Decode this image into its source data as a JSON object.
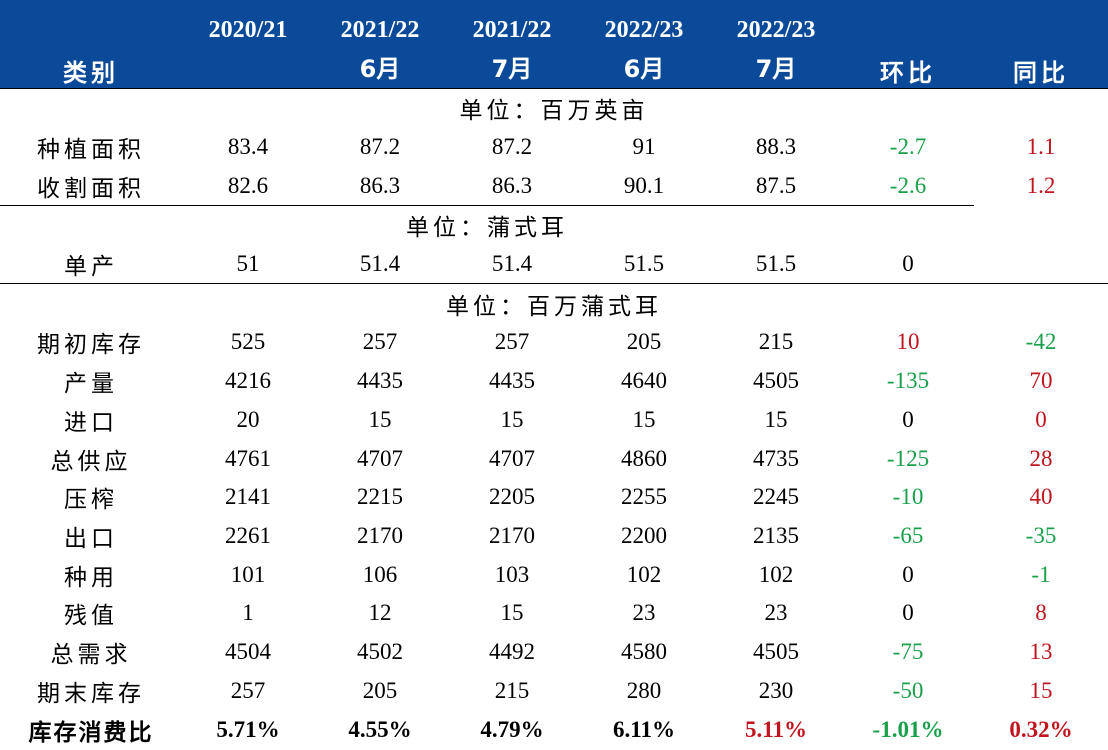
{
  "header": {
    "category_label": "类别",
    "columns": [
      {
        "line1": "2020/21",
        "line2": ""
      },
      {
        "line1": "2021/22",
        "line2": "6月"
      },
      {
        "line1": "2021/22",
        "line2": "7月"
      },
      {
        "line1": "2022/23",
        "line2": "6月"
      },
      {
        "line1": "2022/23",
        "line2": "7月"
      }
    ],
    "mom_label": "环比",
    "yoy_label": "同比"
  },
  "units": {
    "area": "单位：百万英亩",
    "yield": "单位：蒲式耳",
    "volume": "单位：百万蒲式耳"
  },
  "rows": [
    {
      "label": "种植面积",
      "values": [
        "83.4",
        "87.2",
        "87.2",
        "91",
        "88.3"
      ],
      "mom": "-2.7",
      "yoy": "1.1"
    },
    {
      "label": "收割面积",
      "values": [
        "82.6",
        "86.3",
        "86.3",
        "90.1",
        "87.5"
      ],
      "mom": "-2.6",
      "yoy": "1.2"
    },
    {
      "label": "单产",
      "values": [
        "51",
        "51.4",
        "51.4",
        "51.5",
        "51.5"
      ],
      "mom": "0",
      "yoy": ""
    },
    {
      "label": "期初库存",
      "values": [
        "525",
        "257",
        "257",
        "205",
        "215"
      ],
      "mom": "10",
      "yoy": "-42"
    },
    {
      "label": "产量",
      "values": [
        "4216",
        "4435",
        "4435",
        "4640",
        "4505"
      ],
      "mom": "-135",
      "yoy": "70"
    },
    {
      "label": "进口",
      "values": [
        "20",
        "15",
        "15",
        "15",
        "15"
      ],
      "mom": "0",
      "yoy": "0"
    },
    {
      "label": "总供应",
      "values": [
        "4761",
        "4707",
        "4707",
        "4860",
        "4735"
      ],
      "mom": "-125",
      "yoy": "28"
    },
    {
      "label": "压榨",
      "values": [
        "2141",
        "2215",
        "2205",
        "2255",
        "2245"
      ],
      "mom": "-10",
      "yoy": "40"
    },
    {
      "label": "出口",
      "values": [
        "2261",
        "2170",
        "2170",
        "2200",
        "2135"
      ],
      "mom": "-65",
      "yoy": "-35"
    },
    {
      "label": "种用",
      "values": [
        "101",
        "106",
        "103",
        "102",
        "102"
      ],
      "mom": "0",
      "yoy": "-1"
    },
    {
      "label": "残值",
      "values": [
        "1",
        "12",
        "15",
        "23",
        "23"
      ],
      "mom": "0",
      "yoy": "8"
    },
    {
      "label": "总需求",
      "values": [
        "4504",
        "4502",
        "4492",
        "4580",
        "4505"
      ],
      "mom": "-75",
      "yoy": "13"
    },
    {
      "label": "期末库存",
      "values": [
        "257",
        "205",
        "215",
        "280",
        "230"
      ],
      "mom": "-50",
      "yoy": "15"
    },
    {
      "label": "库存消费比",
      "values": [
        "5.71%",
        "4.55%",
        "4.79%",
        "6.11%",
        "5.11%"
      ],
      "mom": "-1.01%",
      "yoy": "0.32%"
    }
  ],
  "colors": {
    "header_bg": "#0b4a99",
    "positive": "#c0141e",
    "negative": "#1aa04a",
    "text": "#000000"
  }
}
